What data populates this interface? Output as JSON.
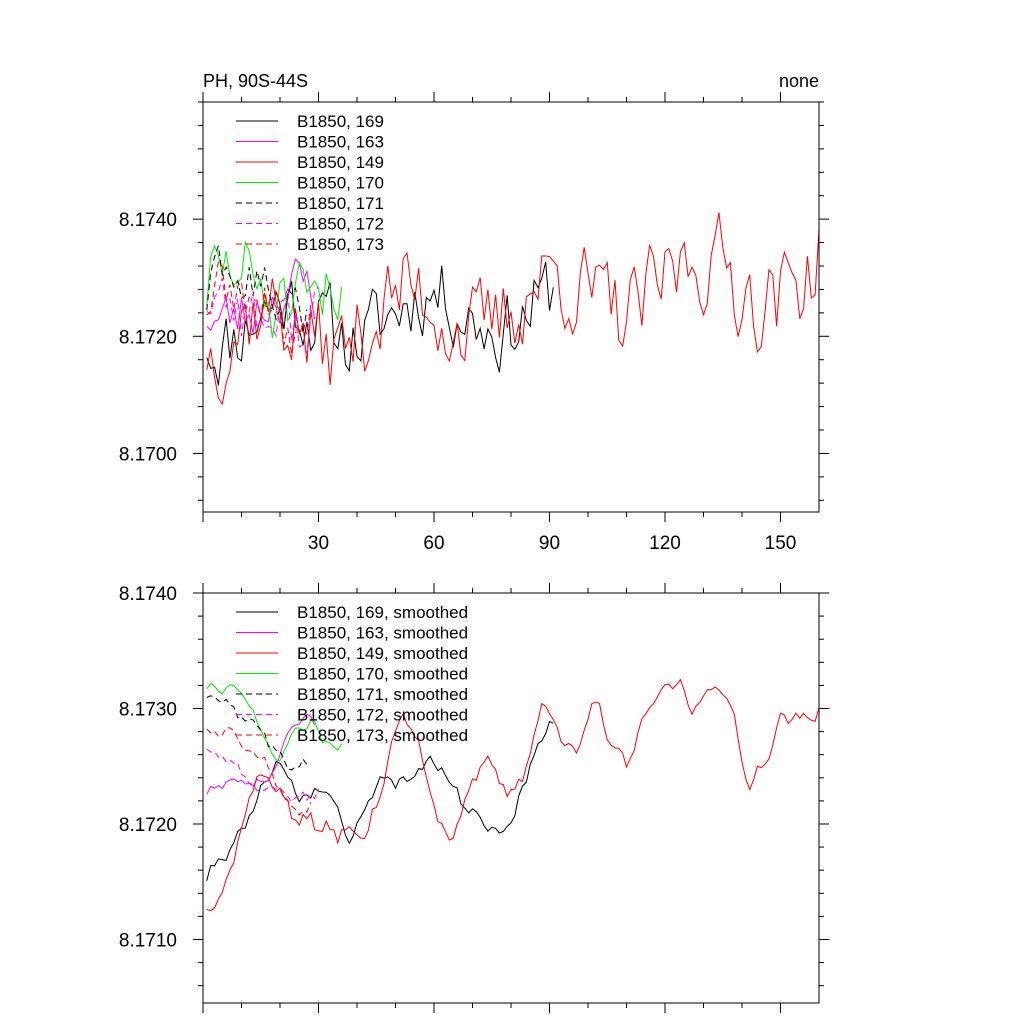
{
  "chart_data": [
    {
      "type": "line",
      "title_left": "PH, 90S-44S",
      "title_right": "none",
      "xlabel": "",
      "ylabel": "",
      "xlim": [
        0,
        160
      ],
      "ylim": [
        8.169,
        8.176
      ],
      "xticks": [
        30,
        60,
        90,
        120,
        150
      ],
      "xtick_labels": [
        "30",
        "60",
        "90",
        "120",
        "150"
      ],
      "yticks": [
        8.17,
        8.172,
        8.174
      ],
      "ytick_labels": [
        "8.1700",
        "8.1720",
        "8.1740"
      ],
      "legend_position": "top-left",
      "series": [
        {
          "name": "B1850, 169",
          "color": "#000000",
          "dash": "solid",
          "length": 91,
          "base": 8.17215,
          "amp": 0.00095,
          "trend": 4.5e-06,
          "seed": 11
        },
        {
          "name": "B1850, 163",
          "color": "#ff00ff",
          "dash": "solid",
          "length": 29,
          "base": 8.17255,
          "amp": 0.00075,
          "trend": 0.0,
          "seed": 23
        },
        {
          "name": "B1850, 149",
          "color": "#ff0000",
          "dash": "solid",
          "length": 160,
          "base": 8.17195,
          "amp": 0.00115,
          "trend": 7.5e-06,
          "seed": 37
        },
        {
          "name": "B1850, 170",
          "color": "#00ee00",
          "dash": "solid",
          "length": 36,
          "base": 8.1727,
          "amp": 0.0011,
          "trend": 0.0,
          "seed": 51
        },
        {
          "name": "B1850, 171",
          "color": "#000000",
          "dash": "dashed",
          "length": 27,
          "base": 8.17265,
          "amp": 0.00075,
          "trend": 0.0,
          "seed": 63
        },
        {
          "name": "B1850, 172",
          "color": "#ff00ff",
          "dash": "dashed",
          "length": 30,
          "base": 8.1725,
          "amp": 0.0009,
          "trend": 0.0,
          "seed": 77
        },
        {
          "name": "B1850, 173",
          "color": "#ff0000",
          "dash": "dashed",
          "length": 28,
          "base": 8.17245,
          "amp": 0.0008,
          "trend": 0.0,
          "seed": 89
        }
      ]
    },
    {
      "type": "line",
      "title_left": "",
      "title_right": "",
      "xlabel": "",
      "ylabel": "",
      "xlim": [
        0,
        160
      ],
      "ylim": [
        8.17045,
        8.174
      ],
      "xticks": [
        30,
        60,
        90,
        120,
        150
      ],
      "xtick_labels": [],
      "yticks": [
        8.171,
        8.172,
        8.173,
        8.174
      ],
      "ytick_labels": [
        "8.1710",
        "8.1720",
        "8.1730",
        "8.1740"
      ],
      "legend_position": "top-left",
      "smoothing_window": 9,
      "series": [
        {
          "name": "B1850, 169, smoothed",
          "color": "#000000",
          "dash": "solid",
          "length": 91,
          "base": 8.17215,
          "amp": 0.00095,
          "trend": 4.5e-06,
          "seed": 11
        },
        {
          "name": "B1850, 163, smoothed",
          "color": "#ff00ff",
          "dash": "solid",
          "length": 29,
          "base": 8.17255,
          "amp": 0.00075,
          "trend": 0.0,
          "seed": 23
        },
        {
          "name": "B1850, 149, smoothed",
          "color": "#ff0000",
          "dash": "solid",
          "length": 160,
          "base": 8.17195,
          "amp": 0.00115,
          "trend": 7.5e-06,
          "seed": 37
        },
        {
          "name": "B1850, 170, smoothed",
          "color": "#00ee00",
          "dash": "solid",
          "length": 36,
          "base": 8.1727,
          "amp": 0.0011,
          "trend": 0.0,
          "seed": 51
        },
        {
          "name": "B1850, 171, smoothed",
          "color": "#000000",
          "dash": "dashed",
          "length": 27,
          "base": 8.17265,
          "amp": 0.00075,
          "trend": 0.0,
          "seed": 63
        },
        {
          "name": "B1850, 172, smoothed",
          "color": "#ff00ff",
          "dash": "dashed",
          "length": 30,
          "base": 8.1725,
          "amp": 0.0009,
          "trend": 0.0,
          "seed": 77
        },
        {
          "name": "B1850, 173, smoothed",
          "color": "#ff0000",
          "dash": "dashed",
          "length": 28,
          "base": 8.17245,
          "amp": 0.0008,
          "trend": 0.0,
          "seed": 89
        }
      ]
    }
  ]
}
